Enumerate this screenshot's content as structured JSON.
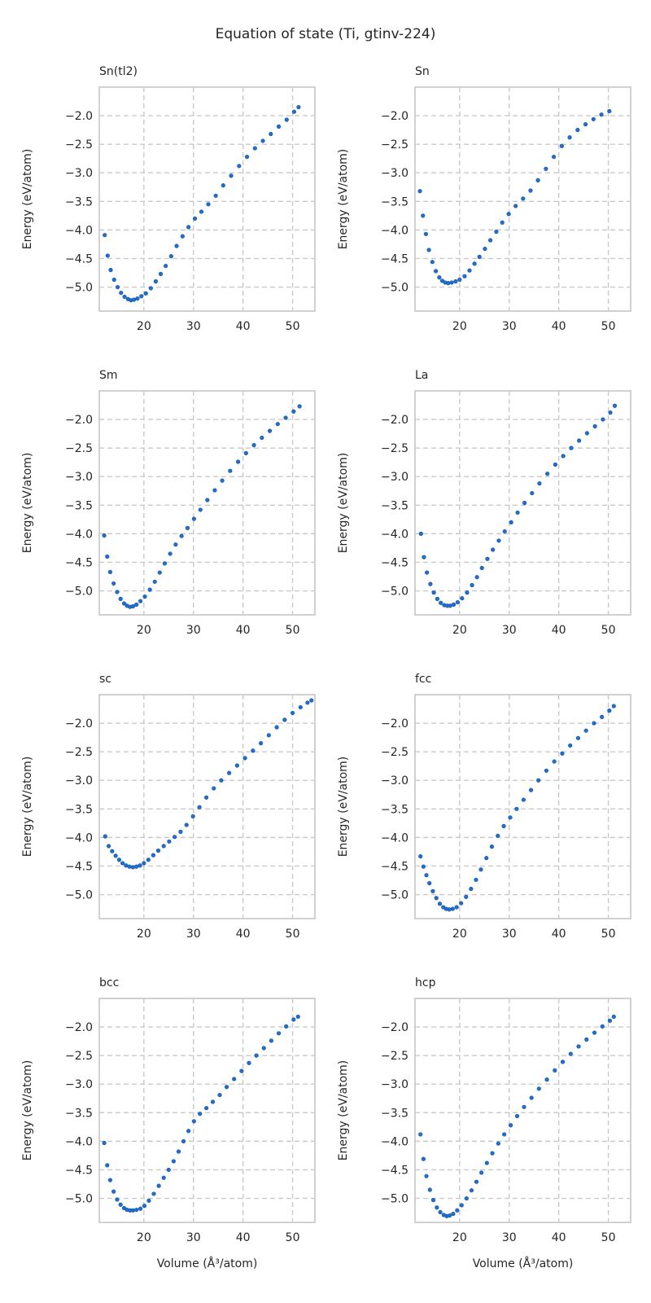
{
  "chart_data": {
    "type": "scatter",
    "title": "Equation of state (Ti, gtinv-224)",
    "xlabel": "Volume (Å³/atom)",
    "ylabel": "Energy (eV/atom)",
    "xticks": [
      20,
      30,
      40,
      50
    ],
    "yticks": [
      -2.0,
      -2.5,
      -3.0,
      -3.5,
      -4.0,
      -4.5,
      -5.0
    ],
    "ytick_labels": [
      "−2.0",
      "−2.5",
      "−3.0",
      "−3.5",
      "−4.0",
      "−4.5",
      "−5.0"
    ],
    "grid": true,
    "series_color": "#1f6fd1",
    "panels": [
      {
        "name": "Sn(tl2)",
        "xlim": [
          11,
          54.5
        ],
        "ylim": [
          -5.42,
          -1.5
        ],
        "x": [
          12.1,
          12.7,
          13.3,
          14.0,
          14.7,
          15.4,
          16.1,
          16.8,
          17.4,
          18.0,
          18.7,
          19.5,
          20.4,
          21.4,
          22.4,
          23.4,
          24.4,
          25.5,
          26.6,
          27.8,
          29.0,
          30.3,
          31.6,
          33.0,
          34.5,
          36.0,
          37.6,
          39.2,
          40.8,
          42.4,
          44.0,
          45.6,
          47.2,
          48.8,
          50.3,
          51.2
        ],
        "y": [
          -4.09,
          -4.45,
          -4.7,
          -4.87,
          -5.0,
          -5.1,
          -5.17,
          -5.21,
          -5.23,
          -5.22,
          -5.2,
          -5.16,
          -5.11,
          -5.02,
          -4.9,
          -4.77,
          -4.63,
          -4.46,
          -4.28,
          -4.11,
          -3.95,
          -3.8,
          -3.68,
          -3.55,
          -3.4,
          -3.22,
          -3.05,
          -2.88,
          -2.72,
          -2.57,
          -2.44,
          -2.32,
          -2.19,
          -2.07,
          -1.93,
          -1.85
        ]
      },
      {
        "name": "Sn",
        "xlim": [
          11,
          54.5
        ],
        "ylim": [
          -5.42,
          -1.5
        ],
        "x": [
          12.0,
          12.6,
          13.2,
          13.8,
          14.5,
          15.2,
          15.9,
          16.5,
          17.1,
          17.7,
          18.4,
          19.2,
          20.0,
          21.0,
          22.0,
          23.0,
          24.0,
          25.1,
          26.2,
          27.4,
          28.6,
          29.9,
          31.3,
          32.8,
          34.3,
          35.8,
          37.4,
          39.0,
          40.6,
          42.2,
          43.8,
          45.4,
          47.0,
          48.6,
          50.2
        ],
        "y": [
          -3.32,
          -3.75,
          -4.07,
          -4.35,
          -4.56,
          -4.72,
          -4.83,
          -4.89,
          -4.92,
          -4.93,
          -4.92,
          -4.9,
          -4.87,
          -4.81,
          -4.71,
          -4.59,
          -4.47,
          -4.33,
          -4.18,
          -4.03,
          -3.87,
          -3.72,
          -3.58,
          -3.45,
          -3.31,
          -3.13,
          -2.93,
          -2.72,
          -2.53,
          -2.38,
          -2.25,
          -2.15,
          -2.06,
          -1.98,
          -1.92
        ]
      },
      {
        "name": "Sm",
        "xlim": [
          11,
          54.5
        ],
        "ylim": [
          -5.42,
          -1.5
        ],
        "x": [
          12.0,
          12.6,
          13.2,
          13.9,
          14.6,
          15.3,
          16.0,
          16.6,
          17.2,
          17.8,
          18.5,
          19.3,
          20.2,
          21.2,
          22.2,
          23.2,
          24.2,
          25.3,
          26.4,
          27.6,
          28.8,
          30.1,
          31.4,
          32.8,
          34.3,
          35.8,
          37.4,
          39.0,
          40.6,
          42.2,
          43.8,
          45.4,
          47.0,
          48.6,
          50.2,
          51.4
        ],
        "y": [
          -4.03,
          -4.4,
          -4.67,
          -4.87,
          -5.02,
          -5.14,
          -5.22,
          -5.26,
          -5.28,
          -5.27,
          -5.24,
          -5.18,
          -5.1,
          -4.98,
          -4.84,
          -4.68,
          -4.52,
          -4.35,
          -4.19,
          -4.04,
          -3.9,
          -3.74,
          -3.58,
          -3.41,
          -3.24,
          -3.07,
          -2.9,
          -2.74,
          -2.59,
          -2.45,
          -2.32,
          -2.2,
          -2.08,
          -1.97,
          -1.86,
          -1.77
        ]
      },
      {
        "name": "La",
        "xlim": [
          11,
          54.5
        ],
        "ylim": [
          -5.42,
          -1.5
        ],
        "x": [
          12.2,
          12.8,
          13.4,
          14.1,
          14.8,
          15.5,
          16.2,
          16.9,
          17.5,
          18.1,
          18.8,
          19.6,
          20.5,
          21.5,
          22.5,
          23.5,
          24.5,
          25.6,
          26.7,
          27.9,
          29.1,
          30.4,
          31.7,
          33.1,
          34.6,
          36.1,
          37.7,
          39.3,
          40.9,
          42.5,
          44.1,
          45.7,
          47.3,
          48.9,
          50.4,
          51.3
        ],
        "y": [
          -4.0,
          -4.41,
          -4.68,
          -4.88,
          -5.03,
          -5.14,
          -5.21,
          -5.25,
          -5.26,
          -5.26,
          -5.24,
          -5.2,
          -5.13,
          -5.03,
          -4.9,
          -4.76,
          -4.6,
          -4.44,
          -4.28,
          -4.12,
          -3.96,
          -3.8,
          -3.63,
          -3.46,
          -3.29,
          -3.12,
          -2.95,
          -2.79,
          -2.64,
          -2.5,
          -2.37,
          -2.24,
          -2.12,
          -2.0,
          -1.88,
          -1.76
        ]
      },
      {
        "name": "sc",
        "xlim": [
          11,
          54.5
        ],
        "ylim": [
          -5.42,
          -1.5
        ],
        "x": [
          12.2,
          12.9,
          13.6,
          14.3,
          15.0,
          15.7,
          16.4,
          17.1,
          17.8,
          18.5,
          19.2,
          20.0,
          20.9,
          21.9,
          22.9,
          24.0,
          25.1,
          26.2,
          27.4,
          28.6,
          29.9,
          31.2,
          32.6,
          34.1,
          35.6,
          37.2,
          38.8,
          40.4,
          42.0,
          43.6,
          45.2,
          46.8,
          48.4,
          50.0,
          51.6,
          53.0,
          53.8
        ],
        "y": [
          -3.98,
          -4.15,
          -4.24,
          -4.32,
          -4.39,
          -4.45,
          -4.49,
          -4.51,
          -4.52,
          -4.51,
          -4.49,
          -4.45,
          -4.39,
          -4.31,
          -4.23,
          -4.15,
          -4.07,
          -3.99,
          -3.9,
          -3.78,
          -3.63,
          -3.47,
          -3.3,
          -3.14,
          -3.0,
          -2.87,
          -2.74,
          -2.61,
          -2.48,
          -2.35,
          -2.21,
          -2.07,
          -1.94,
          -1.82,
          -1.72,
          -1.64,
          -1.6
        ]
      },
      {
        "name": "fcc",
        "xlim": [
          11,
          54.5
        ],
        "ylim": [
          -5.42,
          -1.5
        ],
        "x": [
          12.1,
          12.7,
          13.3,
          13.9,
          14.6,
          15.3,
          16.0,
          16.7,
          17.3,
          17.9,
          18.6,
          19.4,
          20.3,
          21.3,
          22.3,
          23.3,
          24.3,
          25.4,
          26.5,
          27.7,
          28.9,
          30.2,
          31.5,
          32.9,
          34.4,
          35.9,
          37.5,
          39.1,
          40.7,
          42.3,
          43.9,
          45.5,
          47.1,
          48.7,
          50.2,
          51.1
        ],
        "y": [
          -4.33,
          -4.51,
          -4.66,
          -4.8,
          -4.94,
          -5.06,
          -5.16,
          -5.22,
          -5.25,
          -5.26,
          -5.25,
          -5.22,
          -5.15,
          -5.04,
          -4.9,
          -4.74,
          -4.56,
          -4.36,
          -4.16,
          -3.97,
          -3.8,
          -3.65,
          -3.5,
          -3.34,
          -3.17,
          -3.0,
          -2.83,
          -2.67,
          -2.53,
          -2.39,
          -2.26,
          -2.13,
          -2.0,
          -1.89,
          -1.78,
          -1.7
        ]
      },
      {
        "name": "bcc",
        "xlim": [
          11,
          54.5
        ],
        "ylim": [
          -5.42,
          -1.5
        ],
        "x": [
          12.0,
          12.6,
          13.2,
          13.9,
          14.6,
          15.3,
          16.0,
          16.6,
          17.2,
          17.8,
          18.5,
          19.3,
          20.1,
          21.0,
          22.0,
          23.0,
          24.0,
          25.0,
          26.0,
          27.0,
          28.0,
          29.0,
          30.1,
          31.3,
          32.6,
          33.9,
          35.3,
          36.7,
          38.2,
          39.7,
          41.2,
          42.7,
          44.2,
          45.7,
          47.2,
          48.7,
          50.2,
          51.1
        ],
        "y": [
          -4.03,
          -4.42,
          -4.68,
          -4.88,
          -5.02,
          -5.11,
          -5.17,
          -5.2,
          -5.21,
          -5.21,
          -5.2,
          -5.18,
          -5.13,
          -5.04,
          -4.92,
          -4.78,
          -4.64,
          -4.5,
          -4.35,
          -4.18,
          -4.0,
          -3.82,
          -3.65,
          -3.52,
          -3.42,
          -3.31,
          -3.19,
          -3.05,
          -2.91,
          -2.77,
          -2.63,
          -2.5,
          -2.37,
          -2.24,
          -2.11,
          -1.99,
          -1.87,
          -1.82
        ]
      },
      {
        "name": "hcp",
        "xlim": [
          11,
          54.5
        ],
        "ylim": [
          -5.42,
          -1.5
        ],
        "x": [
          12.1,
          12.7,
          13.3,
          14.0,
          14.7,
          15.4,
          16.1,
          16.8,
          17.4,
          18.0,
          18.7,
          19.5,
          20.4,
          21.4,
          22.4,
          23.4,
          24.4,
          25.5,
          26.6,
          27.8,
          29.0,
          30.3,
          31.6,
          33.0,
          34.5,
          36.0,
          37.6,
          39.2,
          40.8,
          42.4,
          44.0,
          45.6,
          47.2,
          48.8,
          50.3,
          51.1
        ],
        "y": [
          -3.88,
          -4.31,
          -4.61,
          -4.85,
          -5.03,
          -5.16,
          -5.24,
          -5.29,
          -5.31,
          -5.3,
          -5.27,
          -5.21,
          -5.12,
          -5.0,
          -4.86,
          -4.71,
          -4.55,
          -4.38,
          -4.21,
          -4.04,
          -3.88,
          -3.72,
          -3.56,
          -3.4,
          -3.24,
          -3.08,
          -2.92,
          -2.76,
          -2.61,
          -2.47,
          -2.34,
          -2.22,
          -2.1,
          -1.99,
          -1.89,
          -1.82
        ]
      }
    ]
  }
}
